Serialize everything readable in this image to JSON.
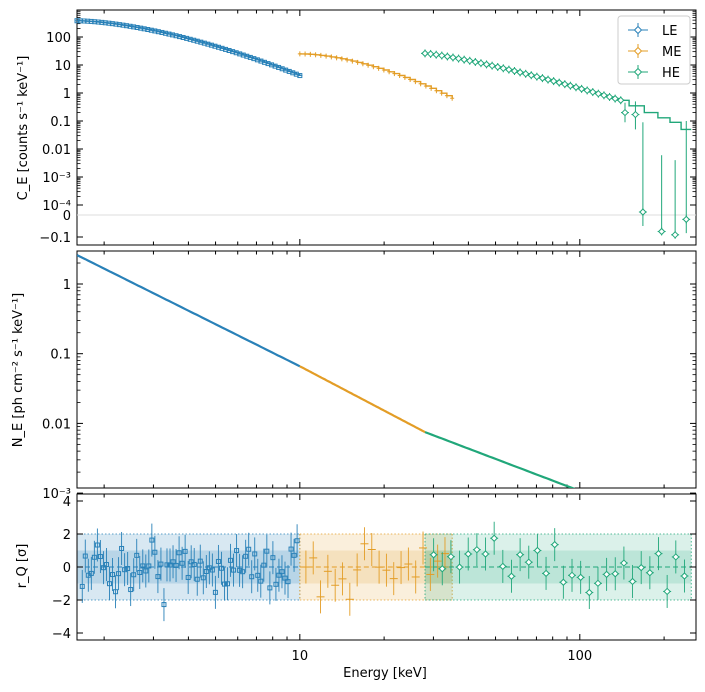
{
  "chart_data": [
    {
      "type": "scatter",
      "panel": "counts-spectrum",
      "ylabel": "C_E [counts s⁻¹ keV⁻¹]",
      "xscale": "log",
      "yscale": "symlog",
      "xlim": [
        1.6,
        260
      ],
      "ylim": [
        -0.18,
        700
      ],
      "y_tick_labels": [
        "100",
        "10",
        "1",
        "0.1",
        "0.01",
        "10⁻³",
        "10⁻⁴",
        "0",
        "−0.1"
      ],
      "legend": {
        "placement": "top-right",
        "entries": [
          "LE",
          "ME",
          "HE"
        ]
      },
      "series": [
        {
          "name": "LE",
          "color": "#2981b8",
          "x_range": [
            1.6,
            10
          ],
          "y_start": 380,
          "y_end": 4.2,
          "points": 64
        },
        {
          "name": "ME",
          "color": "#e39d26",
          "x_range": [
            10,
            35
          ],
          "y_start": 25,
          "y_end": 0.65,
          "points": 30
        },
        {
          "name": "HE",
          "color": "#21a77a",
          "x_range": [
            28,
            250
          ],
          "y_start": 26,
          "y_end": 0.05,
          "tail_points": [
            {
              "x": 145,
              "y": 0.2
            },
            {
              "x": 158,
              "y": 0.17
            },
            {
              "x": 168,
              "y": 3e-05
            },
            {
              "x": 196,
              "y": -0.075
            },
            {
              "x": 219,
              "y": -0.09
            },
            {
              "x": 240,
              "y": -0.02
            }
          ]
        }
      ]
    },
    {
      "type": "line",
      "panel": "unfolded-model",
      "ylabel": "N_E [ph cm⁻² s⁻¹ keV⁻¹]",
      "xscale": "log",
      "yscale": "log",
      "xlim": [
        1.6,
        260
      ],
      "ylim": [
        0.00025,
        3.2
      ],
      "y_tick_labels": [
        "1",
        "0.1",
        "0.01",
        "10⁻³"
      ],
      "series": [
        {
          "name": "LE",
          "color": "#2981b8",
          "x_range": [
            1.6,
            10
          ],
          "y_at_start": 2.6,
          "y_at_end": 0.066
        },
        {
          "name": "ME",
          "color": "#e39d26",
          "x_range": [
            10,
            28
          ],
          "y_at_start": 0.066,
          "y_at_end": 0.0075
        },
        {
          "name": "HE",
          "color": "#21a77a",
          "x_range": [
            28,
            260
          ],
          "y_at_start": 0.0075,
          "y_at_end": 0.00025
        }
      ]
    },
    {
      "type": "scatter",
      "panel": "residuals",
      "xlabel": "Energy [keV]",
      "ylabel": "r_Q [σ]",
      "xscale": "log",
      "xlim": [
        1.6,
        260
      ],
      "ylim": [
        -4.4,
        4.4
      ],
      "x_tick_labels": [
        "10",
        "100"
      ],
      "y_tick_labels": [
        "4",
        "2",
        "0",
        "−2",
        "−4"
      ],
      "bands": [
        {
          "name": "LE",
          "x_range": [
            1.6,
            10
          ],
          "one_sigma": 1,
          "two_sigma": 2
        },
        {
          "name": "ME",
          "x_range": [
            10,
            35
          ],
          "one_sigma": 1,
          "two_sigma": 2
        },
        {
          "name": "HE",
          "x_range": [
            28,
            250
          ],
          "one_sigma": 1,
          "two_sigma": 2
        }
      ]
    }
  ],
  "colors": {
    "LE": "#2981b8",
    "ME": "#e39d26",
    "HE": "#21a77a"
  }
}
